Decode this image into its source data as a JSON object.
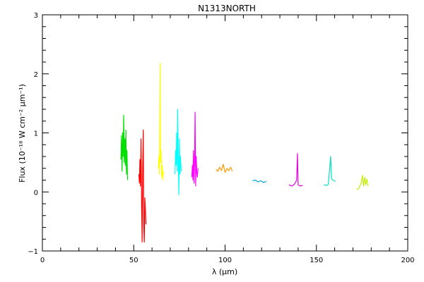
{
  "chart_data": {
    "type": "line",
    "title": "N1313NORTH",
    "xlabel": "λ (μm)",
    "ylabel": "Flux (10⁻¹⁸ W cm⁻² μm⁻¹)",
    "xlim": [
      0,
      200
    ],
    "ylim": [
      -1,
      3
    ],
    "x_ticks": [
      "0",
      "50",
      "100",
      "150",
      "200"
    ],
    "y_ticks": [
      "−1",
      "0",
      "1",
      "2",
      "3"
    ],
    "grid": false,
    "series": [
      {
        "color": "#00e000",
        "x": [
          43.0,
          43.3,
          43.6,
          43.9,
          44.2,
          44.5,
          44.8,
          45.1,
          45.4,
          45.7,
          46.0,
          46.3,
          46.6
        ],
        "y": [
          0.55,
          0.95,
          0.35,
          1.0,
          0.6,
          1.3,
          0.5,
          0.9,
          0.45,
          1.05,
          0.3,
          0.7,
          0.2
        ]
      },
      {
        "color": "#ff0000",
        "x": [
          52.8,
          53.1,
          53.4,
          53.7,
          54.0,
          54.3,
          54.6,
          54.9,
          55.2,
          55.5,
          55.8,
          56.1,
          56.4,
          56.7
        ],
        "y": [
          0.3,
          0.15,
          0.55,
          0.1,
          0.9,
          -0.2,
          -0.85,
          0.4,
          1.05,
          -0.6,
          -0.85,
          -0.1,
          -0.3,
          -0.55
        ]
      },
      {
        "color": "#ffff00",
        "x": [
          63.5,
          63.8,
          64.1,
          64.4,
          64.7,
          65.0,
          65.3,
          65.6,
          65.9,
          66.2
        ],
        "y": [
          0.4,
          0.6,
          0.3,
          2.18,
          0.5,
          0.7,
          0.25,
          0.45,
          0.2,
          0.35
        ]
      },
      {
        "color": "#00ffff",
        "x": [
          72.6,
          72.9,
          73.2,
          73.5,
          73.8,
          74.1,
          74.4,
          74.7,
          75.0,
          75.3,
          75.6,
          76.0
        ],
        "y": [
          0.3,
          0.7,
          0.45,
          1.0,
          0.35,
          1.4,
          0.55,
          -0.05,
          0.9,
          0.3,
          0.6,
          0.35
        ]
      },
      {
        "color": "#ff00ff",
        "x": [
          81.8,
          82.1,
          82.4,
          82.7,
          83.0,
          83.3,
          83.6,
          83.9,
          84.2,
          84.5,
          84.8,
          85.2
        ],
        "y": [
          0.25,
          0.45,
          0.2,
          0.7,
          0.15,
          0.5,
          1.35,
          0.1,
          0.6,
          0.35,
          0.25,
          0.4
        ]
      },
      {
        "color": "#ff9900",
        "x": [
          95.0,
          96.0,
          97.0,
          98.0,
          99.0,
          100.0,
          101.0,
          102.0,
          103.0,
          104.0
        ],
        "y": [
          0.38,
          0.35,
          0.42,
          0.36,
          0.47,
          0.33,
          0.4,
          0.36,
          0.42,
          0.35
        ]
      },
      {
        "color": "#00a0e0",
        "x": [
          115.0,
          116.5,
          118.0,
          119.5,
          121.0,
          122.5
        ],
        "y": [
          0.19,
          0.2,
          0.17,
          0.19,
          0.16,
          0.18
        ]
      },
      {
        "color": "#e000e0",
        "x": [
          135.0,
          136.5,
          138.0,
          139.2,
          139.6,
          140.0,
          141.0,
          142.5
        ],
        "y": [
          0.12,
          0.1,
          0.13,
          0.2,
          0.65,
          0.12,
          0.1,
          0.11
        ]
      },
      {
        "color": "#00e0c0",
        "x": [
          154.0,
          155.5,
          156.5,
          157.4,
          157.8,
          158.3,
          159.0,
          160.5
        ],
        "y": [
          0.12,
          0.11,
          0.13,
          0.45,
          0.6,
          0.22,
          0.2,
          0.18
        ]
      },
      {
        "color": "#c0f000",
        "x": [
          172.0,
          173.0,
          174.5,
          175.2,
          175.8,
          176.4,
          177.0,
          177.6,
          178.2
        ],
        "y": [
          0.05,
          0.05,
          0.15,
          0.28,
          0.1,
          0.25,
          0.12,
          0.22,
          0.1
        ]
      }
    ]
  }
}
